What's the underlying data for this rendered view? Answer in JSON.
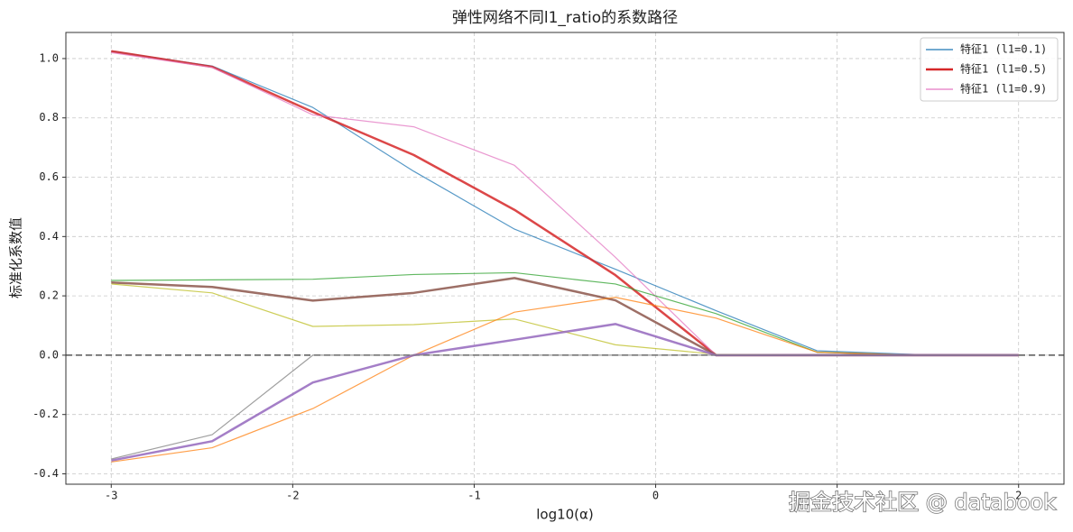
{
  "chart_data": {
    "type": "line",
    "title": "弹性网络不同l1_ratio的系数路径",
    "xlabel": "log10(α)",
    "ylabel": "标准化系数值",
    "watermark": "掘金技术社区 @ databook",
    "x": [
      -3,
      -2.444,
      -1.889,
      -1.333,
      -0.778,
      -0.222,
      0.333,
      0.889,
      1.444,
      2
    ],
    "xlim": [
      -3.25,
      2.25
    ],
    "xticks": [
      -3,
      -2,
      -1,
      0,
      1,
      2
    ],
    "ylim": [
      -0.435,
      1.088
    ],
    "yticks": [
      -0.4,
      -0.2,
      {
        "value": 0,
        "label": "0.0"
      },
      0.2,
      0.4,
      0.6,
      0.8,
      {
        "value": 1,
        "label": "1.0"
      }
    ],
    "grid": true,
    "hline": 0,
    "legend": "upper-right",
    "series": [
      {
        "name": "特征1 (l1=0.1)",
        "color": "#1f77b4",
        "width": 1.2,
        "values": [
          1.025,
          0.975,
          0.835,
          0.62,
          0.425,
          0.29,
          0.15,
          0.015,
          0.002,
          0
        ]
      },
      {
        "name": "特征1 (l1=0.5)",
        "color": "#d62728",
        "width": 2.5,
        "values": [
          1.025,
          0.972,
          0.82,
          0.675,
          0.49,
          0.27,
          0,
          0,
          0,
          0
        ]
      },
      {
        "name": "特征1 (l1=0.9)",
        "color": "#e377c2",
        "width": 1.2,
        "values": [
          1.02,
          0.97,
          0.81,
          0.77,
          0.64,
          0.33,
          0,
          0,
          0,
          0
        ]
      },
      {
        "color": "#2ca02c",
        "width": 1.2,
        "values": [
          0.252,
          0.254,
          0.256,
          0.272,
          0.278,
          0.24,
          0.14,
          0.01,
          0,
          0
        ]
      },
      {
        "color": "#8c564b",
        "width": 2.5,
        "values": [
          0.245,
          0.23,
          0.184,
          0.21,
          0.26,
          0.185,
          0,
          0,
          0,
          0
        ]
      },
      {
        "color": "#bcbd22",
        "width": 1.2,
        "values": [
          0.24,
          0.21,
          0.097,
          0.103,
          0.122,
          0.035,
          0.003,
          0,
          0,
          0
        ]
      },
      {
        "color": "#ff7f0e",
        "width": 1.2,
        "values": [
          -0.36,
          -0.312,
          -0.18,
          0,
          0.145,
          0.195,
          0.125,
          0.01,
          0,
          0
        ]
      },
      {
        "color": "#9467bd",
        "width": 2.5,
        "values": [
          -0.355,
          -0.29,
          -0.092,
          0,
          0.052,
          0.105,
          0,
          0,
          0,
          0
        ]
      },
      {
        "color": "#7f7f7f",
        "width": 1.2,
        "values": [
          -0.35,
          -0.268,
          0,
          0,
          0,
          0,
          0,
          0,
          0,
          0
        ]
      }
    ]
  }
}
